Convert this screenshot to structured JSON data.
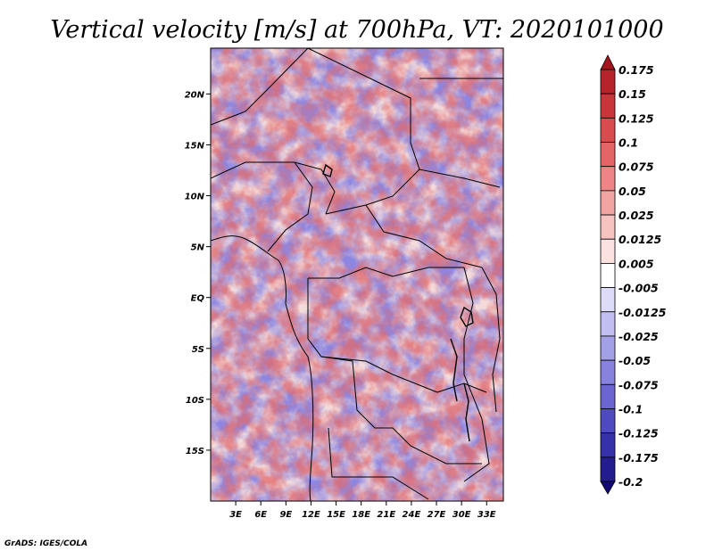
{
  "chart_data": {
    "type": "heatmap",
    "title": "Vertical velocity [m/s] at 700hPa, VT: 2020101000",
    "variable": "Vertical velocity",
    "units": "m/s",
    "level": "700hPa",
    "valid_time": "2020101000",
    "x_axis": {
      "label": "",
      "range_deg_east": [
        0,
        35
      ],
      "ticks": [
        3,
        6,
        9,
        12,
        15,
        18,
        21,
        24,
        27,
        30,
        33
      ],
      "tick_labels": [
        "3E",
        "6E",
        "9E",
        "12E",
        "15E",
        "18E",
        "21E",
        "24E",
        "27E",
        "30E",
        "33E"
      ]
    },
    "y_axis": {
      "label": "",
      "range_deg_north": [
        -20,
        24.5
      ],
      "ticks": [
        20,
        15,
        10,
        5,
        0,
        -5,
        -10,
        -15
      ],
      "tick_labels": [
        "20N",
        "15N",
        "10N",
        "5N",
        "EQ",
        "5S",
        "10S",
        "15S"
      ]
    },
    "colorbar": {
      "labels": [
        "0.175",
        "0.15",
        "0.125",
        "0.1",
        "0.075",
        "0.05",
        "0.025",
        "0.0125",
        "0.005",
        "-0.005",
        "-0.0125",
        "-0.025",
        "-0.05",
        "-0.075",
        "-0.1",
        "-0.125",
        "-0.175",
        "-0.2"
      ],
      "colors": [
        "#a0161c",
        "#b5242a",
        "#c8363a",
        "#d84c4f",
        "#e36566",
        "#ec8584",
        "#f2a4a2",
        "#f7c3c1",
        "#fbe1e0",
        "#ffffff",
        "#dddcf8",
        "#c1bff1",
        "#a3a0e8",
        "#8682dd",
        "#6a65cf",
        "#4f4abf",
        "#3631a8",
        "#221c8f",
        "#120a70"
      ]
    },
    "credit": "GrADS: IGES/COLA"
  }
}
